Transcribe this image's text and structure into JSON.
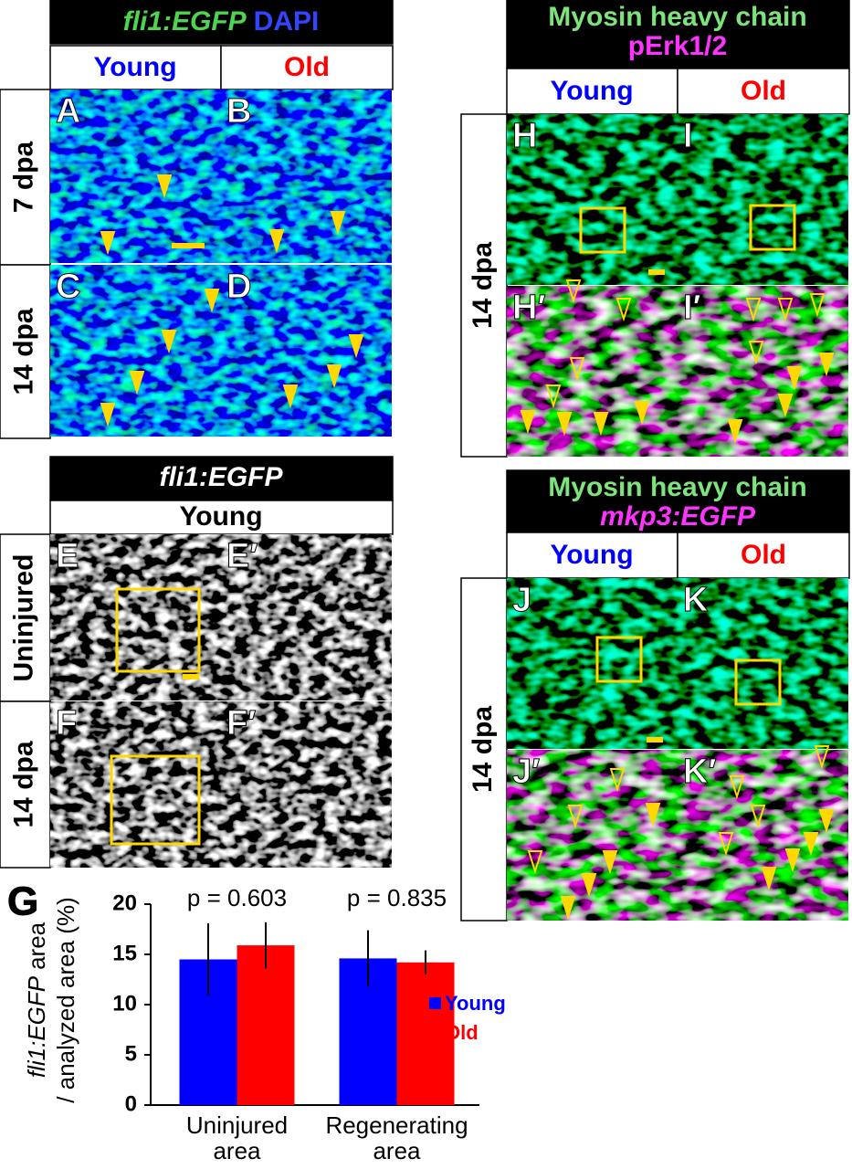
{
  "figure_1": {
    "title": {
      "part1": "fli1:EGFP",
      "part2": "DAPI"
    },
    "columns": [
      "Young",
      "Old"
    ],
    "rows": [
      "7 dpa",
      "14 dpa"
    ],
    "panels": [
      "A",
      "B",
      "C",
      "D"
    ]
  },
  "figure_2": {
    "title": "fli1:EGFP",
    "column": "Young",
    "rows": [
      "Uninjured",
      "14 dpa"
    ],
    "panels": [
      "E",
      "E′",
      "F",
      "F′"
    ]
  },
  "figure_3": {
    "title": {
      "line1": "Myosin heavy chain",
      "line2": "pErk1/2"
    },
    "columns": [
      "Young",
      "Old"
    ],
    "row": "14 dpa",
    "panels": [
      "H",
      "I",
      "H′",
      "I′"
    ]
  },
  "figure_4": {
    "title": {
      "line1": "Myosin heavy chain",
      "line2": "mkp3:EGFP"
    },
    "columns": [
      "Young",
      "Old"
    ],
    "row": "14 dpa",
    "panels": [
      "J",
      "K",
      "J′",
      "K′"
    ]
  },
  "chart_data": {
    "type": "bar",
    "panel_label": "G",
    "y_label": {
      "part1": "fli1:EGFP",
      "part2": "area",
      "line2": "/ analyzed area (%)"
    },
    "categories": [
      "Uninjured area",
      "Regenerating area"
    ],
    "annotations": [
      "p = 0.603",
      "p = 0.835"
    ],
    "series": [
      {
        "name": "Young",
        "color": "#0000ff",
        "values": [
          14.5,
          14.6
        ],
        "errors": [
          3.6,
          2.8
        ]
      },
      {
        "name": "Old",
        "color": "#ff0000",
        "values": [
          15.9,
          14.2
        ],
        "errors": [
          2.3,
          1.2
        ]
      }
    ],
    "ylim": [
      0,
      20
    ],
    "yticks": [
      0,
      5,
      10,
      15,
      20
    ]
  }
}
